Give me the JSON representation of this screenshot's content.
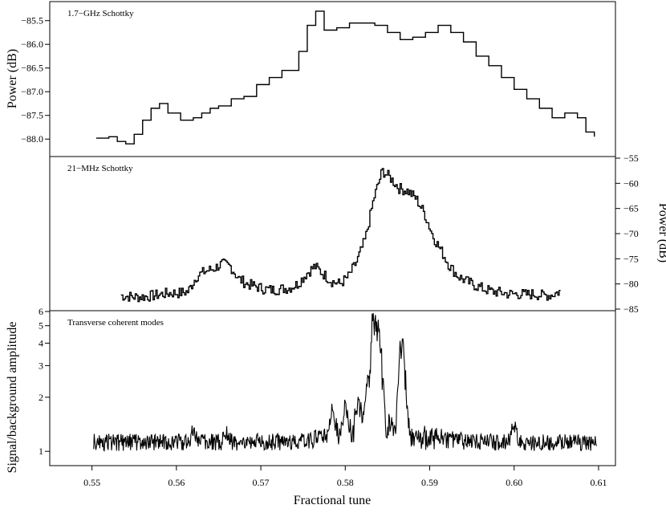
{
  "chart_data": {
    "type": "line",
    "xlabel": "Fractional tune",
    "xlim": [
      0.545,
      0.612
    ],
    "xticks": [
      0.55,
      0.56,
      0.57,
      0.58,
      0.59,
      0.6,
      0.61
    ],
    "xtick_labels": [
      "0.55",
      "0.56",
      "0.57",
      "0.58",
      "0.59",
      "0.60",
      "0.61"
    ],
    "panels": [
      {
        "annotation": "1.7−GHz Schottky",
        "ylabel": "Power (dB)",
        "ylabel_side": "left",
        "ylim": [
          -88.25,
          -85.2
        ],
        "yticks": [
          -88.0,
          -87.5,
          -87.0,
          -86.5,
          -86.0,
          -85.5
        ],
        "ytick_labels": [
          "−88.0",
          "−87.5",
          "−87.0",
          "−86.5",
          "−86.0",
          "−85.5"
        ],
        "style": "step",
        "x": [
          0.5505,
          0.552,
          0.553,
          0.554,
          0.555,
          0.556,
          0.557,
          0.558,
          0.559,
          0.5605,
          0.562,
          0.563,
          0.564,
          0.565,
          0.5665,
          0.568,
          0.5695,
          0.571,
          0.5725,
          0.5745,
          0.5755,
          0.5765,
          0.5775,
          0.579,
          0.5805,
          0.582,
          0.5835,
          0.585,
          0.5865,
          0.588,
          0.5895,
          0.591,
          0.5925,
          0.594,
          0.5955,
          0.597,
          0.5985,
          0.6,
          0.6015,
          0.603,
          0.6045,
          0.606,
          0.6075,
          0.6085,
          0.6095
        ],
        "y": [
          -87.98,
          -87.95,
          -88.05,
          -88.1,
          -87.9,
          -87.6,
          -87.35,
          -87.25,
          -87.45,
          -87.6,
          -87.55,
          -87.45,
          -87.35,
          -87.3,
          -87.15,
          -87.1,
          -86.85,
          -86.7,
          -86.55,
          -86.15,
          -85.6,
          -85.3,
          -85.7,
          -85.65,
          -85.55,
          -85.55,
          -85.6,
          -85.75,
          -85.9,
          -85.85,
          -85.75,
          -85.6,
          -85.75,
          -85.95,
          -86.25,
          -86.45,
          -86.7,
          -86.95,
          -87.15,
          -87.35,
          -87.55,
          -87.45,
          -87.55,
          -87.85,
          -87.95
        ]
      },
      {
        "annotation": "21−MHz Schottky",
        "ylabel": "Power (dB)",
        "ylabel_side": "right",
        "ylim": [
          -85,
          -55
        ],
        "yticks": [
          -85,
          -80,
          -75,
          -70,
          -65,
          -60,
          -55
        ],
        "ytick_labels": [
          "−85",
          "−80",
          "−75",
          "−70",
          "−65",
          "−60",
          "−55"
        ],
        "style": "step",
        "x": [
          0.5535,
          0.5545,
          0.5555,
          0.5565,
          0.5575,
          0.5585,
          0.5595,
          0.5605,
          0.5615,
          0.5625,
          0.5635,
          0.5645,
          0.5655,
          0.5665,
          0.5675,
          0.5685,
          0.5695,
          0.5705,
          0.5715,
          0.5725,
          0.5735,
          0.5745,
          0.5755,
          0.5765,
          0.5775,
          0.5785,
          0.5795,
          0.5805,
          0.5815,
          0.5825,
          0.5835,
          0.5845,
          0.5855,
          0.5865,
          0.5875,
          0.5885,
          0.5895,
          0.5905,
          0.5915,
          0.5925,
          0.5935,
          0.5945,
          0.5955,
          0.5965,
          0.5975,
          0.5985,
          0.5995,
          0.6005,
          0.6015,
          0.6025,
          0.6035,
          0.6045,
          0.6055
        ],
        "y": [
          -82.3,
          -82.5,
          -82.6,
          -82.5,
          -82.3,
          -82.0,
          -81.8,
          -81.8,
          -81.5,
          -78.5,
          -77.5,
          -77.0,
          -76.0,
          -76.5,
          -79.0,
          -80.0,
          -80.5,
          -81.0,
          -81.2,
          -81.0,
          -80.8,
          -80.0,
          -78.0,
          -76.5,
          -78.0,
          -79.5,
          -80.0,
          -78.5,
          -75.5,
          -71.0,
          -63.0,
          -57.5,
          -59.0,
          -61.0,
          -61.5,
          -63.0,
          -66.0,
          -70.5,
          -73.5,
          -76.5,
          -78.5,
          -79.5,
          -80.3,
          -81.0,
          -81.5,
          -81.7,
          -82.0,
          -82.0,
          -82.1,
          -82.0,
          -82.3,
          -82.2,
          -81.5
        ]
      },
      {
        "annotation": "Transverse coherent modes",
        "ylabel": "Signal/background amplitude",
        "ylabel_side": "left",
        "scale": "log",
        "ylim": [
          0.85,
          6.0
        ],
        "yticks": [
          1,
          2,
          3,
          4,
          5,
          6
        ],
        "ytick_labels": [
          "1",
          "2",
          "3",
          "4",
          "5",
          "6"
        ],
        "style": "noisy-line",
        "x_range": [
          0.5502,
          0.6098
        ],
        "baseline": 1.13,
        "peaks": [
          {
            "x": 0.562,
            "y": 1.35
          },
          {
            "x": 0.566,
            "y": 1.3
          },
          {
            "x": 0.5785,
            "y": 1.75
          },
          {
            "x": 0.58,
            "y": 1.65
          },
          {
            "x": 0.5815,
            "y": 1.8
          },
          {
            "x": 0.5825,
            "y": 2.2
          },
          {
            "x": 0.5833,
            "y": 5.6
          },
          {
            "x": 0.5838,
            "y": 3.6
          },
          {
            "x": 0.5842,
            "y": 3.0
          },
          {
            "x": 0.5866,
            "y": 3.7
          },
          {
            "x": 0.587,
            "y": 2.3
          },
          {
            "x": 0.6,
            "y": 1.5
          }
        ]
      }
    ]
  }
}
